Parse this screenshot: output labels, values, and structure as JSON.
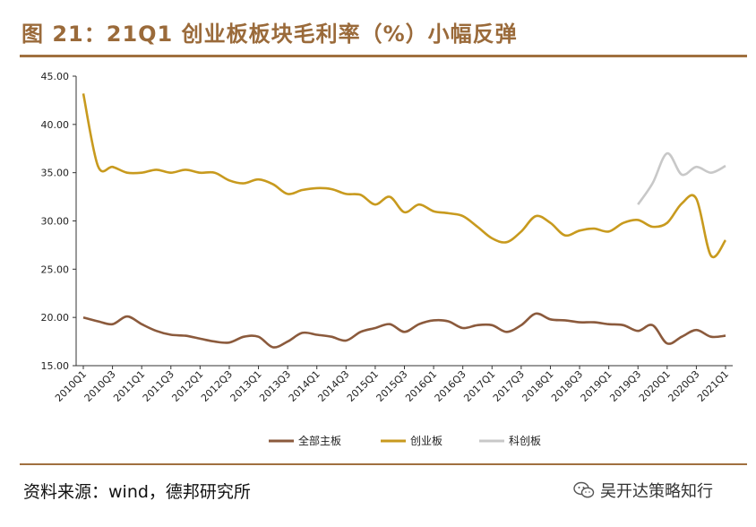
{
  "header": {
    "title": "图 21：21Q1 创业板板块毛利率（%）小幅反弹"
  },
  "footer": {
    "source": "资料来源：wind，德邦研究所",
    "watermark": "吴开达策略知行"
  },
  "colors": {
    "accent": "#a0703f",
    "main_board": "#8b5a3c",
    "chinext": "#c89a1e",
    "star": "#c8c8c8"
  },
  "chart_data": {
    "type": "line",
    "title": "",
    "xlabel": "",
    "ylabel": "",
    "ylim": [
      15,
      45
    ],
    "yticks": [
      "15.00",
      "20.00",
      "25.00",
      "30.00",
      "35.00",
      "40.00",
      "45.00"
    ],
    "grid": false,
    "legend": "bottom",
    "x": [
      "2010Q1",
      "2010Q2",
      "2010Q3",
      "2010Q4",
      "2011Q1",
      "2011Q2",
      "2011Q3",
      "2011Q4",
      "2012Q1",
      "2012Q2",
      "2012Q3",
      "2012Q4",
      "2013Q1",
      "2013Q2",
      "2013Q3",
      "2013Q4",
      "2014Q1",
      "2014Q2",
      "2014Q3",
      "2014Q4",
      "2015Q1",
      "2015Q2",
      "2015Q3",
      "2015Q4",
      "2016Q1",
      "2016Q2",
      "2016Q3",
      "2016Q4",
      "2017Q1",
      "2017Q2",
      "2017Q3",
      "2017Q4",
      "2018Q1",
      "2018Q2",
      "2018Q3",
      "2018Q4",
      "2019Q1",
      "2019Q2",
      "2019Q3",
      "2019Q4",
      "2020Q1",
      "2020Q2",
      "2020Q3",
      "2020Q4",
      "2021Q1"
    ],
    "xtick_labels": [
      "2010Q1",
      "2010Q3",
      "2011Q1",
      "2011Q3",
      "2012Q1",
      "2012Q3",
      "2013Q1",
      "2013Q3",
      "2014Q1",
      "2014Q3",
      "2015Q1",
      "2015Q3",
      "2016Q1",
      "2016Q3",
      "2017Q1",
      "2017Q3",
      "2018Q1",
      "2018Q3",
      "2019Q1",
      "2019Q3",
      "2020Q1",
      "2020Q3",
      "2021Q1"
    ],
    "series": [
      {
        "name": "全部主板",
        "key": "main_board",
        "values": [
          20.0,
          19.6,
          19.3,
          20.1,
          19.3,
          18.6,
          18.2,
          18.1,
          17.8,
          17.5,
          17.4,
          18.0,
          18.0,
          16.9,
          17.5,
          18.4,
          18.2,
          18.0,
          17.6,
          18.5,
          18.9,
          19.3,
          18.5,
          19.3,
          19.7,
          19.6,
          18.9,
          19.2,
          19.2,
          18.5,
          19.2,
          20.4,
          19.8,
          19.7,
          19.5,
          19.5,
          19.3,
          19.2,
          18.6,
          19.2,
          17.3,
          18.0,
          18.7,
          18.0,
          18.1
        ]
      },
      {
        "name": "创业板",
        "key": "chinext",
        "values": [
          43.2,
          35.7,
          35.6,
          35.0,
          35.0,
          35.3,
          35.0,
          35.3,
          35.0,
          35.0,
          34.2,
          33.9,
          34.3,
          33.8,
          32.8,
          33.2,
          33.4,
          33.3,
          32.8,
          32.7,
          31.7,
          32.5,
          30.9,
          31.7,
          31.0,
          30.8,
          30.5,
          29.4,
          28.2,
          27.8,
          28.9,
          30.5,
          29.8,
          28.5,
          29.0,
          29.2,
          28.9,
          29.8,
          30.1,
          29.4,
          29.8,
          31.8,
          32.3,
          26.4,
          28.0
        ]
      },
      {
        "name": "科创板",
        "key": "star",
        "values": [
          null,
          null,
          null,
          null,
          null,
          null,
          null,
          null,
          null,
          null,
          null,
          null,
          null,
          null,
          null,
          null,
          null,
          null,
          null,
          null,
          null,
          null,
          null,
          null,
          null,
          null,
          null,
          null,
          null,
          null,
          null,
          null,
          null,
          null,
          null,
          null,
          null,
          null,
          31.7,
          33.9,
          37.0,
          34.8,
          35.6,
          35.0,
          35.7
        ]
      }
    ]
  }
}
